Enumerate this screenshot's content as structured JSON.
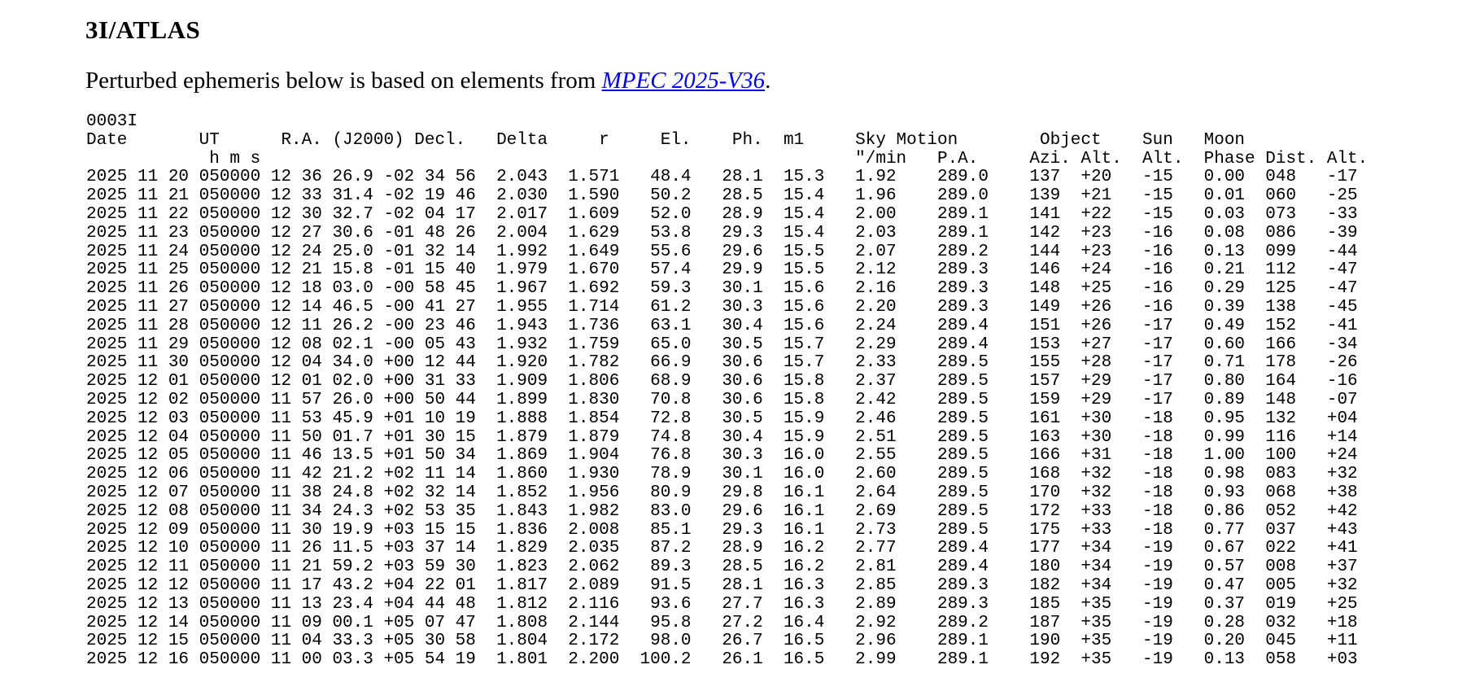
{
  "page": {
    "title": "3I/ATLAS",
    "intro_before": "Perturbed ephemeris below is based on elements from ",
    "mpec_link_text": "MPEC 2025-V36",
    "intro_after": ".",
    "link_color": "#0000EE",
    "text_color": "#000000",
    "background_color": "#ffffff"
  },
  "ephemeris": {
    "id_line": "0003I",
    "header_row1": [
      "Date",
      "UT",
      "R.A. (J2000) Decl.",
      "Delta",
      "r",
      "El.",
      "Ph.",
      "m1",
      "Sky Motion",
      "Object",
      "Sun",
      "Moon"
    ],
    "header_row2": [
      "h m s",
      "\"/min",
      "P.A.",
      "Azi.",
      "Alt.",
      "Alt.",
      "Phase",
      "Dist.",
      "Alt."
    ],
    "field_keys": [
      "date",
      "ut",
      "ra",
      "decl",
      "delta",
      "r",
      "el",
      "ph",
      "m1",
      "motion",
      "pa",
      "azi",
      "alt",
      "sun_alt",
      "phase",
      "dist",
      "moon_alt"
    ],
    "rows": [
      [
        "2025 11 20",
        "050000",
        "12 36 26.9",
        "-02 34 56",
        "2.043",
        "1.571",
        "48.4",
        "28.1",
        "15.3",
        "1.92",
        "289.0",
        "137",
        "+20",
        "-15",
        "0.00",
        "048",
        "-17"
      ],
      [
        "2025 11 21",
        "050000",
        "12 33 31.4",
        "-02 19 46",
        "2.030",
        "1.590",
        "50.2",
        "28.5",
        "15.4",
        "1.96",
        "289.0",
        "139",
        "+21",
        "-15",
        "0.01",
        "060",
        "-25"
      ],
      [
        "2025 11 22",
        "050000",
        "12 30 32.7",
        "-02 04 17",
        "2.017",
        "1.609",
        "52.0",
        "28.9",
        "15.4",
        "2.00",
        "289.1",
        "141",
        "+22",
        "-15",
        "0.03",
        "073",
        "-33"
      ],
      [
        "2025 11 23",
        "050000",
        "12 27 30.6",
        "-01 48 26",
        "2.004",
        "1.629",
        "53.8",
        "29.3",
        "15.4",
        "2.03",
        "289.1",
        "142",
        "+23",
        "-16",
        "0.08",
        "086",
        "-39"
      ],
      [
        "2025 11 24",
        "050000",
        "12 24 25.0",
        "-01 32 14",
        "1.992",
        "1.649",
        "55.6",
        "29.6",
        "15.5",
        "2.07",
        "289.2",
        "144",
        "+23",
        "-16",
        "0.13",
        "099",
        "-44"
      ],
      [
        "2025 11 25",
        "050000",
        "12 21 15.8",
        "-01 15 40",
        "1.979",
        "1.670",
        "57.4",
        "29.9",
        "15.5",
        "2.12",
        "289.3",
        "146",
        "+24",
        "-16",
        "0.21",
        "112",
        "-47"
      ],
      [
        "2025 11 26",
        "050000",
        "12 18 03.0",
        "-00 58 45",
        "1.967",
        "1.692",
        "59.3",
        "30.1",
        "15.6",
        "2.16",
        "289.3",
        "148",
        "+25",
        "-16",
        "0.29",
        "125",
        "-47"
      ],
      [
        "2025 11 27",
        "050000",
        "12 14 46.5",
        "-00 41 27",
        "1.955",
        "1.714",
        "61.2",
        "30.3",
        "15.6",
        "2.20",
        "289.3",
        "149",
        "+26",
        "-16",
        "0.39",
        "138",
        "-45"
      ],
      [
        "2025 11 28",
        "050000",
        "12 11 26.2",
        "-00 23 46",
        "1.943",
        "1.736",
        "63.1",
        "30.4",
        "15.6",
        "2.24",
        "289.4",
        "151",
        "+26",
        "-17",
        "0.49",
        "152",
        "-41"
      ],
      [
        "2025 11 29",
        "050000",
        "12 08 02.1",
        "-00 05 43",
        "1.932",
        "1.759",
        "65.0",
        "30.5",
        "15.7",
        "2.29",
        "289.4",
        "153",
        "+27",
        "-17",
        "0.60",
        "166",
        "-34"
      ],
      [
        "2025 11 30",
        "050000",
        "12 04 34.0",
        "+00 12 44",
        "1.920",
        "1.782",
        "66.9",
        "30.6",
        "15.7",
        "2.33",
        "289.5",
        "155",
        "+28",
        "-17",
        "0.71",
        "178",
        "-26"
      ],
      [
        "2025 12 01",
        "050000",
        "12 01 02.0",
        "+00 31 33",
        "1.909",
        "1.806",
        "68.9",
        "30.6",
        "15.8",
        "2.37",
        "289.5",
        "157",
        "+29",
        "-17",
        "0.80",
        "164",
        "-16"
      ],
      [
        "2025 12 02",
        "050000",
        "11 57 26.0",
        "+00 50 44",
        "1.899",
        "1.830",
        "70.8",
        "30.6",
        "15.8",
        "2.42",
        "289.5",
        "159",
        "+29",
        "-17",
        "0.89",
        "148",
        "-07"
      ],
      [
        "2025 12 03",
        "050000",
        "11 53 45.9",
        "+01 10 19",
        "1.888",
        "1.854",
        "72.8",
        "30.5",
        "15.9",
        "2.46",
        "289.5",
        "161",
        "+30",
        "-18",
        "0.95",
        "132",
        "+04"
      ],
      [
        "2025 12 04",
        "050000",
        "11 50 01.7",
        "+01 30 15",
        "1.879",
        "1.879",
        "74.8",
        "30.4",
        "15.9",
        "2.51",
        "289.5",
        "163",
        "+30",
        "-18",
        "0.99",
        "116",
        "+14"
      ],
      [
        "2025 12 05",
        "050000",
        "11 46 13.5",
        "+01 50 34",
        "1.869",
        "1.904",
        "76.8",
        "30.3",
        "16.0",
        "2.55",
        "289.5",
        "166",
        "+31",
        "-18",
        "1.00",
        "100",
        "+24"
      ],
      [
        "2025 12 06",
        "050000",
        "11 42 21.2",
        "+02 11 14",
        "1.860",
        "1.930",
        "78.9",
        "30.1",
        "16.0",
        "2.60",
        "289.5",
        "168",
        "+32",
        "-18",
        "0.98",
        "083",
        "+32"
      ],
      [
        "2025 12 07",
        "050000",
        "11 38 24.8",
        "+02 32 14",
        "1.852",
        "1.956",
        "80.9",
        "29.8",
        "16.1",
        "2.64",
        "289.5",
        "170",
        "+32",
        "-18",
        "0.93",
        "068",
        "+38"
      ],
      [
        "2025 12 08",
        "050000",
        "11 34 24.3",
        "+02 53 35",
        "1.843",
        "1.982",
        "83.0",
        "29.6",
        "16.1",
        "2.69",
        "289.5",
        "172",
        "+33",
        "-18",
        "0.86",
        "052",
        "+42"
      ],
      [
        "2025 12 09",
        "050000",
        "11 30 19.9",
        "+03 15 15",
        "1.836",
        "2.008",
        "85.1",
        "29.3",
        "16.1",
        "2.73",
        "289.5",
        "175",
        "+33",
        "-18",
        "0.77",
        "037",
        "+43"
      ],
      [
        "2025 12 10",
        "050000",
        "11 26 11.5",
        "+03 37 14",
        "1.829",
        "2.035",
        "87.2",
        "28.9",
        "16.2",
        "2.77",
        "289.4",
        "177",
        "+34",
        "-19",
        "0.67",
        "022",
        "+41"
      ],
      [
        "2025 12 11",
        "050000",
        "11 21 59.2",
        "+03 59 30",
        "1.823",
        "2.062",
        "89.3",
        "28.5",
        "16.2",
        "2.81",
        "289.4",
        "180",
        "+34",
        "-19",
        "0.57",
        "008",
        "+37"
      ],
      [
        "2025 12 12",
        "050000",
        "11 17 43.2",
        "+04 22 01",
        "1.817",
        "2.089",
        "91.5",
        "28.1",
        "16.3",
        "2.85",
        "289.3",
        "182",
        "+34",
        "-19",
        "0.47",
        "005",
        "+32"
      ],
      [
        "2025 12 13",
        "050000",
        "11 13 23.4",
        "+04 44 48",
        "1.812",
        "2.116",
        "93.6",
        "27.7",
        "16.3",
        "2.89",
        "289.3",
        "185",
        "+35",
        "-19",
        "0.37",
        "019",
        "+25"
      ],
      [
        "2025 12 14",
        "050000",
        "11 09 00.1",
        "+05 07 47",
        "1.808",
        "2.144",
        "95.8",
        "27.2",
        "16.4",
        "2.92",
        "289.2",
        "187",
        "+35",
        "-19",
        "0.28",
        "032",
        "+18"
      ],
      [
        "2025 12 15",
        "050000",
        "11 04 33.3",
        "+05 30 58",
        "1.804",
        "2.172",
        "98.0",
        "26.7",
        "16.5",
        "2.96",
        "289.1",
        "190",
        "+35",
        "-19",
        "0.20",
        "045",
        "+11"
      ],
      [
        "2025 12 16",
        "050000",
        "11 00 03.3",
        "+05 54 19",
        "1.801",
        "2.200",
        "100.2",
        "26.1",
        "16.5",
        "2.99",
        "289.1",
        "192",
        "+35",
        "-19",
        "0.13",
        "058",
        "+03"
      ]
    ]
  }
}
